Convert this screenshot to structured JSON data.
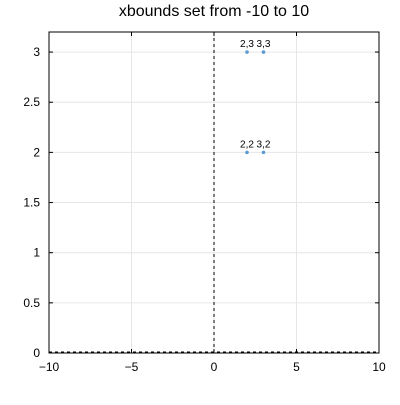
{
  "chart_data": {
    "type": "scatter",
    "title": "xbounds set from -10 to 10",
    "xlabel": "",
    "ylabel": "",
    "xlim": [
      -10,
      10
    ],
    "ylim": [
      0,
      3.2
    ],
    "x_ticks": [
      -10,
      -5,
      0,
      5,
      10
    ],
    "x_tick_labels": [
      "−10",
      "−5",
      "0",
      "5",
      "10"
    ],
    "y_ticks": [
      0,
      0.5,
      1,
      1.5,
      2,
      2.5,
      3
    ],
    "y_tick_labels": [
      "0",
      "0.5",
      "1",
      "1.5",
      "2",
      "2.5",
      "3"
    ],
    "grid": true,
    "reference_lines": [
      {
        "orientation": "vertical",
        "value": 0,
        "style": "dashed"
      },
      {
        "orientation": "horizontal",
        "value": 0,
        "style": "dashed"
      }
    ],
    "series": [
      {
        "points": [
          {
            "x": 2,
            "y": 2,
            "label": "2,2"
          },
          {
            "x": 3,
            "y": 2,
            "label": "3,2"
          },
          {
            "x": 2,
            "y": 3,
            "label": "2,3"
          },
          {
            "x": 3,
            "y": 3,
            "label": "3,3"
          }
        ],
        "color": "#5b9bd5"
      }
    ]
  }
}
